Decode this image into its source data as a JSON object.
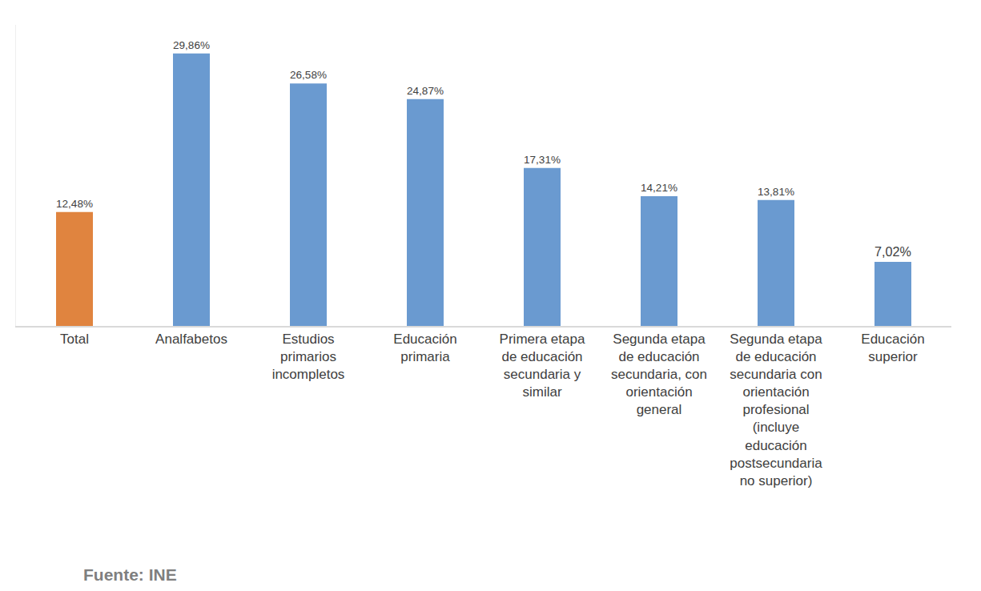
{
  "chart_data": {
    "type": "bar",
    "categories": [
      "Total",
      "Analfabetos",
      "Estudios primarios incompletos",
      "Educación primaria",
      "Primera etapa de educación secundaria y similar",
      "Segunda etapa de educación secundaria, con orientación general",
      "Segunda etapa de educación secundaria con orientación profesional (incluye educación postsecundaria no superior)",
      "Educación superior"
    ],
    "values": [
      12.48,
      29.86,
      26.58,
      24.87,
      17.31,
      14.21,
      13.81,
      7.02
    ],
    "value_labels": [
      "12,48%",
      "29,86%",
      "26,58%",
      "24,87%",
      "17,31%",
      "14,21%",
      "13,81%",
      "7,02%"
    ],
    "colors": [
      "#e0843f",
      "#6a9ad0",
      "#6a9ad0",
      "#6a9ad0",
      "#6a9ad0",
      "#6a9ad0",
      "#6a9ad0",
      "#6a9ad0"
    ],
    "ylim": [
      0,
      33
    ],
    "data_labels": true,
    "tick_labels": "x",
    "grid": false,
    "source": "Fuente: INE"
  }
}
